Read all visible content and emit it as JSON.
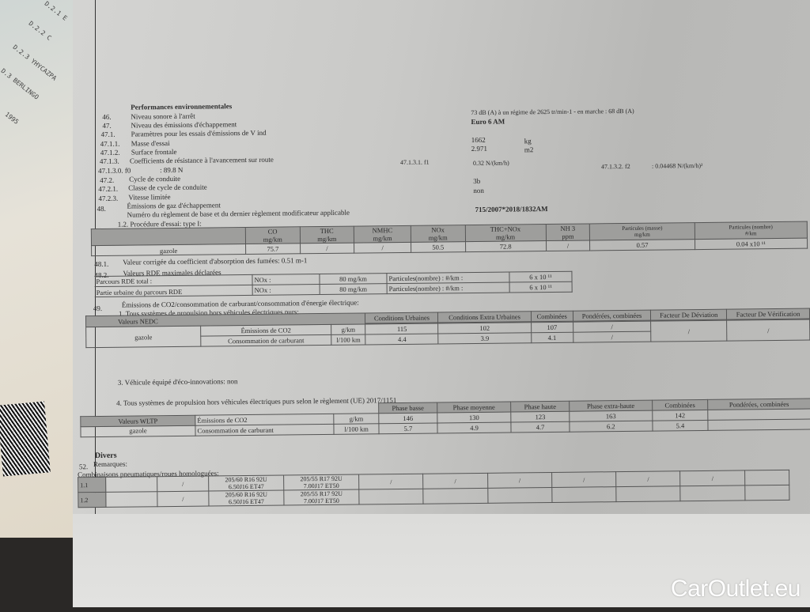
{
  "background_card": {
    "lines": [
      "D.2.1  E",
      "D.2.2  C",
      "D.2.3  YHYCAZPA",
      "D.3  BERLINGO",
      "1995"
    ]
  },
  "section": {
    "title": "Performances environnementales"
  },
  "items": [
    {
      "num": "46.",
      "label": "Niveau sonore à l'arrêt",
      "value": "73 dB (A)  à un régime de 2625 tr/min-1 - en marche :  68 dB (A)"
    },
    {
      "num": "47.",
      "label": "Niveau des émissions d'échappement",
      "value": "Euro 6 AM"
    },
    {
      "num": "47.1.",
      "label": "Paramètres pour les essais d'émissions de V ind",
      "value": ""
    },
    {
      "num": "47.1.1.",
      "label": "Masse d'essai",
      "value": "1662",
      "unit": "kg"
    },
    {
      "num": "47.1.2.",
      "label": "Surface frontale",
      "value": "2.971",
      "unit": "m2"
    },
    {
      "num": "47.1.3.",
      "label": "Coefficients de résistance à l'avancement sur route",
      "value": ""
    },
    {
      "num": "47.1.3.0. f0",
      "label": ": 89.8 N",
      "value": ""
    },
    {
      "num": "47.2.",
      "label": "Cycle de conduite",
      "value": ""
    },
    {
      "num": "47.2.1.",
      "label": "Classe de cycle de conduite",
      "value": "3b"
    },
    {
      "num": "47.2.3.",
      "label": "Vitesse limitée",
      "value": "non"
    },
    {
      "num": "48.",
      "label": "Émissions de gaz d'échappement",
      "value": ""
    }
  ],
  "f1": {
    "label": "47.1.3.1.  f1",
    "value": "0.32 N/(km/h)"
  },
  "f2": {
    "label": "47.1.3.2.  f2",
    "value": ": 0.04468 N/(km/h)²"
  },
  "reglement": {
    "label": "Numéro du règlement de base et du dernier règlement modificateur applicable",
    "value": "715/2007*2018/1832AM"
  },
  "type1": {
    "caption": "1.2. Procédure d'essai: type I:",
    "headers": [
      [
        "CO",
        "mg/km"
      ],
      [
        "THC",
        "mg/km"
      ],
      [
        "NMHC",
        "mg/km"
      ],
      [
        "NOx",
        "mg/km"
      ],
      [
        "THC+NOx",
        "mg/km"
      ],
      [
        "NH 3",
        "ppm"
      ],
      [
        "Particules (masse)",
        "mg/km"
      ],
      [
        "Particules (nombre)",
        "#/km"
      ]
    ],
    "fuel": "gazole",
    "values": [
      "75.7",
      "/",
      "/",
      "50.5",
      "72.8",
      "/",
      "0.57",
      "0.04 x10 ¹¹"
    ]
  },
  "fumes": {
    "num": "48.1.",
    "text": "Valeur corrigée du coefficient d'absorption des fumées: 0.51 m-1"
  },
  "rde": {
    "num": "48.2.",
    "title": "Valeurs RDE maximales déclarées",
    "rows": [
      {
        "label": "Parcours RDE total :",
        "nox": "NOx :",
        "nox_val": "80 mg/km",
        "pn": "Particules(nombre) : #/km :",
        "pn_val": "6 x 10 ¹¹"
      },
      {
        "label": "Partie urbaine du parcours RDE",
        "nox": "NOx :",
        "nox_val": "80 mg/km",
        "pn": "Particules(nombre) : #/km :",
        "pn_val": "6 x 10 ¹¹"
      }
    ]
  },
  "co2": {
    "num": "49.",
    "title": "Émissions de CO2/consommation de carburant/consommation d'énergie électrique:",
    "nedc_caption": "1. Tous systèmes de propulsion hors véhicules électriques purs:",
    "nedc": {
      "label": "Valeurs NEDC",
      "headers": [
        "Conditions Urbaines",
        "Conditions Extra Urbaines",
        "Combinées",
        "Pondérées, combinées",
        "Facteur De Déviation",
        "Facteur De Vérification"
      ],
      "fuel": "gazole",
      "rows": [
        {
          "label": "Émissions de CO2",
          "unit": "g/km",
          "values": [
            "115",
            "102",
            "107",
            "/"
          ]
        },
        {
          "label": "Consommation de carburant",
          "unit": "l/100 km",
          "values": [
            "4.4",
            "3.9",
            "4.1",
            "/"
          ]
        }
      ],
      "deviation": "/",
      "verification": "/"
    },
    "eco": "3. Véhicule équipé d'éco-innovations: non",
    "wltp_caption": "4. Tous systèmes de propulsion hors véhicules électriques purs selon le règlement (UE) 2017/1151",
    "wltp": {
      "label": "Valeurs WLTP",
      "headers": [
        "Phase basse",
        "Phase moyenne",
        "Phase haute",
        "Phase extra-haute",
        "Combinées",
        "Pondérées, combinées"
      ],
      "fuel": "gazole",
      "rows": [
        {
          "label": "Émissions de CO2",
          "unit": "g/km",
          "values": [
            "146",
            "130",
            "123",
            "163",
            "142",
            ""
          ]
        },
        {
          "label": "Consommation de carburant",
          "unit": "l/100 km",
          "values": [
            "5.7",
            "4.9",
            "4.7",
            "6.2",
            "5.4",
            ""
          ]
        }
      ]
    }
  },
  "divers": {
    "title": "Divers",
    "num": "52.",
    "remarques": "Remarques:",
    "tyres_caption": "Combinaisons pneumatiques/roues homologuées:",
    "rows": [
      {
        "id": "1.1",
        "a": "205/60 R16 92U",
        "a2": "6.50J16 ET47",
        "b": "205/55 R17 92U",
        "b2": "7.00J17 ET50"
      },
      {
        "id": "1.2",
        "a": "205/60 R16 92U",
        "a2": "6.50J16 ET47",
        "b": "205/55 R17 92U",
        "b2": "7.00J17 ET50"
      }
    ]
  },
  "watermark": "CarOutlet.eu"
}
